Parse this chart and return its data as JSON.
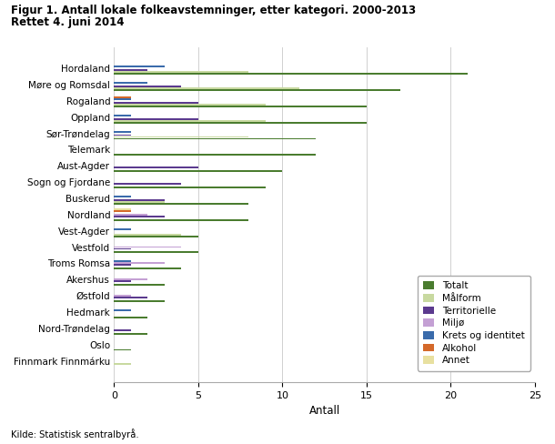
{
  "title_line1": "Figur 1. Antall lokale folkeavstemninger, etter kategori. 2000-2013",
  "title_line2": "Rettet 4. juni 2014",
  "xlabel": "Antall",
  "source": "Kilde: Statistisk sentralbyrå.",
  "xlim": [
    0,
    25
  ],
  "xticks": [
    0,
    5,
    10,
    15,
    20,
    25
  ],
  "categories": [
    "Hordaland",
    "Møre og Romsdal",
    "Rogaland",
    "Oppland",
    "Sør-Trøndelag",
    "Telemark",
    "Aust-Agder",
    "Sogn og Fjordane",
    "Buskerud",
    "Nordland",
    "Vest-Agder",
    "Vestfold",
    "Troms Romsa",
    "Akershus",
    "Østfold",
    "Hedmark",
    "Nord-Trøndelag",
    "Oslo",
    "Finnmark Finnmárku"
  ],
  "series": {
    "Totalt": [
      21,
      17,
      15,
      15,
      12,
      12,
      10,
      9,
      8,
      8,
      5,
      5,
      4,
      3,
      3,
      2,
      2,
      1,
      0
    ],
    "Målform": [
      8,
      11,
      9,
      9,
      8,
      0,
      0,
      0,
      3,
      0,
      4,
      0,
      0,
      0,
      0,
      0,
      0,
      0,
      1
    ],
    "Territorielle": [
      2,
      4,
      5,
      5,
      1,
      0,
      5,
      4,
      3,
      3,
      0,
      1,
      1,
      1,
      2,
      0,
      1,
      0,
      0
    ],
    "Miljø": [
      0,
      0,
      0,
      0,
      0,
      0,
      0,
      0,
      0,
      2,
      0,
      4,
      3,
      2,
      1,
      0,
      0,
      0,
      0
    ],
    "Krets og identitet": [
      3,
      2,
      1,
      1,
      1,
      0,
      0,
      0,
      1,
      0,
      1,
      0,
      1,
      0,
      0,
      1,
      0,
      0,
      0
    ],
    "Alkohol": [
      0,
      0,
      1,
      0,
      0,
      0,
      0,
      0,
      0,
      1,
      0,
      0,
      0,
      0,
      0,
      0,
      0,
      0,
      0
    ],
    "Annet": [
      0,
      0,
      0,
      0,
      0,
      0,
      0,
      0,
      0,
      1,
      0,
      0,
      0,
      0,
      0,
      0,
      0,
      0,
      0
    ]
  },
  "colors": {
    "Totalt": "#4a7c2f",
    "Målform": "#c8d9a0",
    "Territorielle": "#5b3a8e",
    "Miljø": "#c4a0d4",
    "Krets og identitet": "#3a6bab",
    "Alkohol": "#d4692a",
    "Annet": "#e8e0a0"
  },
  "figsize": [
    6.1,
    4.88
  ],
  "dpi": 100,
  "background_color": "#ffffff",
  "grid_color": "#d0d0d0"
}
